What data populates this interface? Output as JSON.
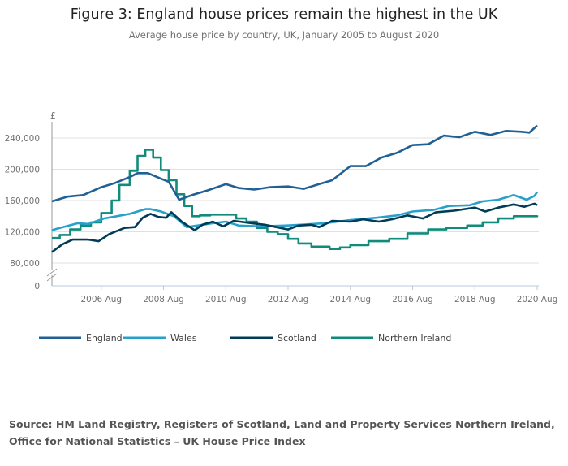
{
  "chart_data": {
    "type": "line",
    "title": "Figure 3: England house prices remain the highest in the UK",
    "subtitle": "Average house price by country, UK, January 2005 to August 2020",
    "ylabel": "£",
    "ylim": [
      0,
      260000
    ],
    "yticks": [
      0,
      80000,
      120000,
      160000,
      200000,
      240000
    ],
    "ytick_labels": [
      "0",
      "80,000",
      "120,000",
      "160,000",
      "200,000",
      "240,000"
    ],
    "x_unit": "months since January 2005",
    "xlim": [
      0,
      187
    ],
    "xticks": [
      19,
      43,
      67,
      91,
      115,
      139,
      163,
      187
    ],
    "xtick_labels": [
      "2006 Aug",
      "2008 Aug",
      "2010 Aug",
      "2012 Aug",
      "2014 Aug",
      "2016 Aug",
      "2018 Aug",
      "2020 Aug"
    ],
    "grid": true,
    "legend_position": "bottom",
    "series": [
      {
        "name": "England",
        "color": "#206095",
        "step": false,
        "points": [
          [
            0,
            159000
          ],
          [
            6,
            165000
          ],
          [
            12,
            167000
          ],
          [
            19,
            177000
          ],
          [
            24,
            182000
          ],
          [
            30,
            190000
          ],
          [
            33,
            195000
          ],
          [
            37,
            195000
          ],
          [
            42,
            188000
          ],
          [
            45,
            184000
          ],
          [
            49,
            161000
          ],
          [
            54,
            167000
          ],
          [
            60,
            173000
          ],
          [
            67,
            181000
          ],
          [
            72,
            176000
          ],
          [
            78,
            174000
          ],
          [
            84,
            177000
          ],
          [
            91,
            178000
          ],
          [
            97,
            175000
          ],
          [
            103,
            181000
          ],
          [
            108,
            186000
          ],
          [
            115,
            204000
          ],
          [
            121,
            204000
          ],
          [
            127,
            215000
          ],
          [
            133,
            221000
          ],
          [
            139,
            231000
          ],
          [
            145,
            232000
          ],
          [
            151,
            243000
          ],
          [
            157,
            241000
          ],
          [
            163,
            248000
          ],
          [
            169,
            244000
          ],
          [
            175,
            249000
          ],
          [
            181,
            248000
          ],
          [
            184,
            247000
          ],
          [
            187,
            256000
          ]
        ]
      },
      {
        "name": "Wales",
        "color": "#27a0cc",
        "step": false,
        "points": [
          [
            0,
            122000
          ],
          [
            2,
            124000
          ],
          [
            10,
            131000
          ],
          [
            14,
            130000
          ],
          [
            20,
            137000
          ],
          [
            25,
            140000
          ],
          [
            30,
            143000
          ],
          [
            36,
            149000
          ],
          [
            38,
            149000
          ],
          [
            42,
            146000
          ],
          [
            47,
            140000
          ],
          [
            52,
            126000
          ],
          [
            56,
            128000
          ],
          [
            62,
            131000
          ],
          [
            67,
            133000
          ],
          [
            72,
            128000
          ],
          [
            80,
            127000
          ],
          [
            90,
            128000
          ],
          [
            96,
            129000
          ],
          [
            105,
            131000
          ],
          [
            115,
            135000
          ],
          [
            125,
            138000
          ],
          [
            133,
            141000
          ],
          [
            139,
            146000
          ],
          [
            147,
            148000
          ],
          [
            153,
            153000
          ],
          [
            161,
            154000
          ],
          [
            166,
            159000
          ],
          [
            172,
            161000
          ],
          [
            178,
            167000
          ],
          [
            183,
            161000
          ],
          [
            186,
            166000
          ],
          [
            187,
            171000
          ]
        ]
      },
      {
        "name": "Scotland",
        "color": "#003c57",
        "step": false,
        "points": [
          [
            0,
            94000
          ],
          [
            4,
            104000
          ],
          [
            8,
            110000
          ],
          [
            14,
            110000
          ],
          [
            18,
            108000
          ],
          [
            22,
            117000
          ],
          [
            28,
            125000
          ],
          [
            32,
            126000
          ],
          [
            35,
            138000
          ],
          [
            38,
            143000
          ],
          [
            41,
            139000
          ],
          [
            44,
            138000
          ],
          [
            46,
            145000
          ],
          [
            50,
            133000
          ],
          [
            55,
            122000
          ],
          [
            58,
            129000
          ],
          [
            62,
            133000
          ],
          [
            66,
            127000
          ],
          [
            70,
            134000
          ],
          [
            77,
            131000
          ],
          [
            82,
            129000
          ],
          [
            88,
            125000
          ],
          [
            91,
            123000
          ],
          [
            95,
            128000
          ],
          [
            100,
            129000
          ],
          [
            103,
            126000
          ],
          [
            108,
            134000
          ],
          [
            115,
            133000
          ],
          [
            120,
            136000
          ],
          [
            126,
            133000
          ],
          [
            131,
            136000
          ],
          [
            137,
            141000
          ],
          [
            143,
            137000
          ],
          [
            148,
            145000
          ],
          [
            155,
            147000
          ],
          [
            163,
            151000
          ],
          [
            167,
            146000
          ],
          [
            172,
            151000
          ],
          [
            178,
            155000
          ],
          [
            182,
            152000
          ],
          [
            186,
            156000
          ],
          [
            187,
            154000
          ]
        ]
      },
      {
        "name": "Northern Ireland",
        "color": "#118c7b",
        "step": true,
        "points": [
          [
            0,
            112000
          ],
          [
            3,
            116000
          ],
          [
            7,
            123000
          ],
          [
            11,
            128000
          ],
          [
            15,
            132000
          ],
          [
            19,
            144000
          ],
          [
            23,
            160000
          ],
          [
            26,
            180000
          ],
          [
            30,
            198000
          ],
          [
            33,
            217000
          ],
          [
            36,
            225000
          ],
          [
            39,
            215000
          ],
          [
            42,
            199000
          ],
          [
            45,
            186000
          ],
          [
            48,
            168000
          ],
          [
            51,
            153000
          ],
          [
            54,
            140000
          ],
          [
            57,
            141000
          ],
          [
            61,
            142000
          ],
          [
            71,
            137000
          ],
          [
            75,
            133000
          ],
          [
            79,
            125000
          ],
          [
            83,
            120000
          ],
          [
            87,
            117000
          ],
          [
            91,
            111000
          ],
          [
            95,
            105000
          ],
          [
            100,
            101000
          ],
          [
            107,
            98000
          ],
          [
            111,
            100000
          ],
          [
            115,
            103000
          ],
          [
            122,
            108000
          ],
          [
            130,
            111000
          ],
          [
            137,
            118000
          ],
          [
            145,
            123000
          ],
          [
            152,
            125000
          ],
          [
            160,
            128000
          ],
          [
            166,
            132000
          ],
          [
            172,
            137000
          ],
          [
            178,
            140000
          ],
          [
            187,
            141000
          ]
        ]
      }
    ]
  },
  "source": "Source: HM Land Registry, Registers of Scotland, Land and Property Services Northern Ireland, Office for National Statistics – UK House Price Index"
}
